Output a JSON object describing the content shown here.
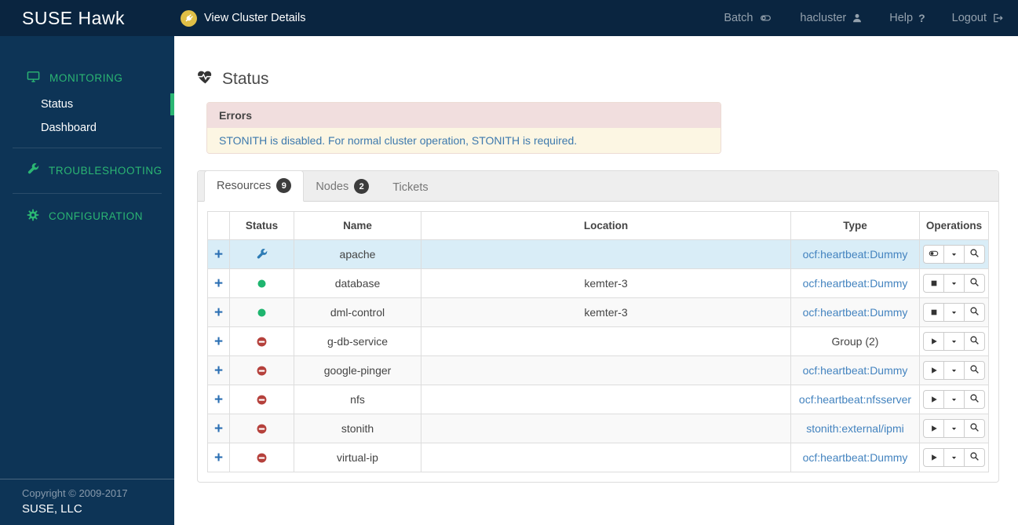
{
  "topbar": {
    "brand": "SUSE Hawk",
    "cluster_link": "View Cluster Details",
    "batch_label": "Batch",
    "user_label": "hacluster",
    "help_label": "Help",
    "help_symbol": "?",
    "logout_label": "Logout"
  },
  "sidebar": {
    "monitoring_label": "MONITORING",
    "status_label": "Status",
    "dashboard_label": "Dashboard",
    "troubleshooting_label": "TROUBLESHOOTING",
    "configuration_label": "CONFIGURATION",
    "copyright": "Copyright © 2009-2017",
    "company": "SUSE, LLC"
  },
  "main": {
    "page_title": "Status",
    "errors_panel": {
      "title": "Errors",
      "message": "STONITH is disabled. For normal cluster operation, STONITH is required."
    },
    "tabs": [
      {
        "label": "Resources",
        "count": "9",
        "active": true
      },
      {
        "label": "Nodes",
        "count": "2",
        "active": false
      },
      {
        "label": "Tickets",
        "count": "",
        "active": false
      }
    ],
    "table": {
      "headers": [
        "Status",
        "Name",
        "Location",
        "Type",
        "Operations"
      ],
      "rows": [
        {
          "name": "apache",
          "status": "maintenance",
          "location": "",
          "type": "ocf:heartbeat:Dummy",
          "type_is_link": true,
          "primary_action": "toggle",
          "highlighted": true
        },
        {
          "name": "database",
          "status": "running",
          "location": "kemter-3",
          "type": "ocf:heartbeat:Dummy",
          "type_is_link": true,
          "primary_action": "stop",
          "highlighted": false
        },
        {
          "name": "dml-control",
          "status": "running",
          "location": "kemter-3",
          "type": "ocf:heartbeat:Dummy",
          "type_is_link": true,
          "primary_action": "stop",
          "highlighted": false
        },
        {
          "name": "g-db-service",
          "status": "stopped",
          "location": "",
          "type": "Group (2)",
          "type_is_link": false,
          "primary_action": "start",
          "highlighted": false
        },
        {
          "name": "google-pinger",
          "status": "stopped",
          "location": "",
          "type": "ocf:heartbeat:Dummy",
          "type_is_link": true,
          "primary_action": "start",
          "highlighted": false
        },
        {
          "name": "nfs",
          "status": "stopped",
          "location": "",
          "type": "ocf:heartbeat:nfsserver",
          "type_is_link": true,
          "primary_action": "start",
          "highlighted": false
        },
        {
          "name": "stonith",
          "status": "stopped",
          "location": "",
          "type": "stonith:external/ipmi",
          "type_is_link": true,
          "primary_action": "start",
          "highlighted": false
        },
        {
          "name": "virtual-ip",
          "status": "stopped",
          "location": "",
          "type": "ocf:heartbeat:Dummy",
          "type_is_link": true,
          "primary_action": "start",
          "highlighted": false
        }
      ]
    }
  },
  "colors": {
    "topbar_bg": "#0a2540",
    "sidebar_bg": "#0d3456",
    "accent_green": "#2bb673",
    "running_green": "#1fb56f",
    "stopped_red": "#b5413c",
    "maintenance_blue": "#2e7cb5",
    "link_blue": "#4383bf",
    "row_highlight": "#d9edf7",
    "badge_bg": "#3c3c3c",
    "errors_header_bg": "#f1dede",
    "errors_body_bg": "#fcf6e3",
    "gold_icon_bg": "#e0bf47"
  }
}
